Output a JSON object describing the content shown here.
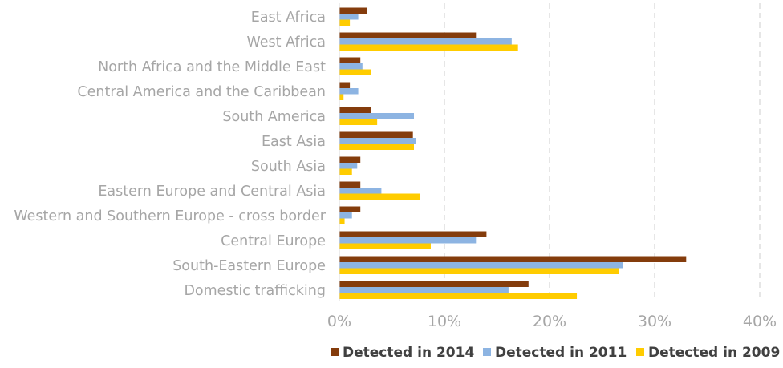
{
  "chart_data": {
    "type": "bar",
    "orientation": "horizontal",
    "title": "",
    "xlabel": "",
    "ylabel": "",
    "xlim": [
      0,
      40
    ],
    "x_ticks": [
      0,
      10,
      20,
      30,
      40
    ],
    "x_tick_labels": [
      "0%",
      "10%",
      "20%",
      "30%",
      "40%"
    ],
    "grid": "vertical dashed",
    "legend_position": "bottom-right",
    "categories": [
      "East Africa",
      "West Africa",
      "North Africa and the Middle East",
      "Central America and the Caribbean",
      "South America",
      "East Asia",
      "South Asia",
      "Eastern Europe and Central Asia",
      "Western and Southern Europe - cross border",
      "Central Europe",
      "South-Eastern Europe",
      "Domestic trafficking"
    ],
    "series": [
      {
        "name": "Detected in 2014",
        "color": "#843c0c",
        "values": [
          2.6,
          13.0,
          2.0,
          1.0,
          3.0,
          7.0,
          2.0,
          2.0,
          2.0,
          14.0,
          33.0,
          18.0
        ]
      },
      {
        "name": "Detected in 2011",
        "color": "#8db4e2",
        "values": [
          1.8,
          16.4,
          2.2,
          1.8,
          7.1,
          7.3,
          1.7,
          4.0,
          1.2,
          13.0,
          27.0,
          16.1
        ]
      },
      {
        "name": "Detected in 2009",
        "color": "#ffcc00",
        "values": [
          1.0,
          17.0,
          3.0,
          0.4,
          3.6,
          7.1,
          1.2,
          7.7,
          0.5,
          8.7,
          26.6,
          22.6
        ]
      }
    ],
    "unit": "%"
  }
}
